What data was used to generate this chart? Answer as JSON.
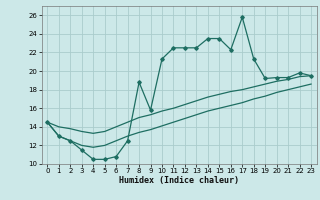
{
  "xlabel": "Humidex (Indice chaleur)",
  "bg_color": "#cce8e8",
  "grid_color": "#aacccc",
  "line_color": "#1e6e62",
  "x_data": [
    0,
    1,
    2,
    3,
    4,
    5,
    6,
    7,
    8,
    9,
    10,
    11,
    12,
    13,
    14,
    15,
    16,
    17,
    18,
    19,
    20,
    21,
    22,
    23
  ],
  "y_main": [
    14.5,
    13.0,
    12.5,
    11.5,
    10.5,
    10.5,
    10.8,
    12.5,
    18.8,
    15.8,
    21.3,
    22.5,
    22.5,
    22.5,
    23.5,
    23.5,
    22.3,
    25.8,
    21.3,
    19.2,
    19.3,
    19.3,
    19.8,
    19.5
  ],
  "y_trend_upper": [
    14.5,
    14.0,
    13.8,
    13.5,
    13.3,
    13.5,
    14.0,
    14.5,
    15.0,
    15.3,
    15.7,
    16.0,
    16.4,
    16.8,
    17.2,
    17.5,
    17.8,
    18.0,
    18.3,
    18.6,
    18.9,
    19.1,
    19.4,
    19.5
  ],
  "y_trend_lower": [
    14.5,
    13.0,
    12.5,
    12.0,
    11.8,
    12.0,
    12.5,
    13.0,
    13.4,
    13.7,
    14.1,
    14.5,
    14.9,
    15.3,
    15.7,
    16.0,
    16.3,
    16.6,
    17.0,
    17.3,
    17.7,
    18.0,
    18.3,
    18.6
  ],
  "ylim": [
    10,
    27
  ],
  "xlim": [
    -0.5,
    23.5
  ],
  "yticks": [
    10,
    12,
    14,
    16,
    18,
    20,
    22,
    24,
    26
  ],
  "xticks": [
    0,
    1,
    2,
    3,
    4,
    5,
    6,
    7,
    8,
    9,
    10,
    11,
    12,
    13,
    14,
    15,
    16,
    17,
    18,
    19,
    20,
    21,
    22,
    23
  ]
}
